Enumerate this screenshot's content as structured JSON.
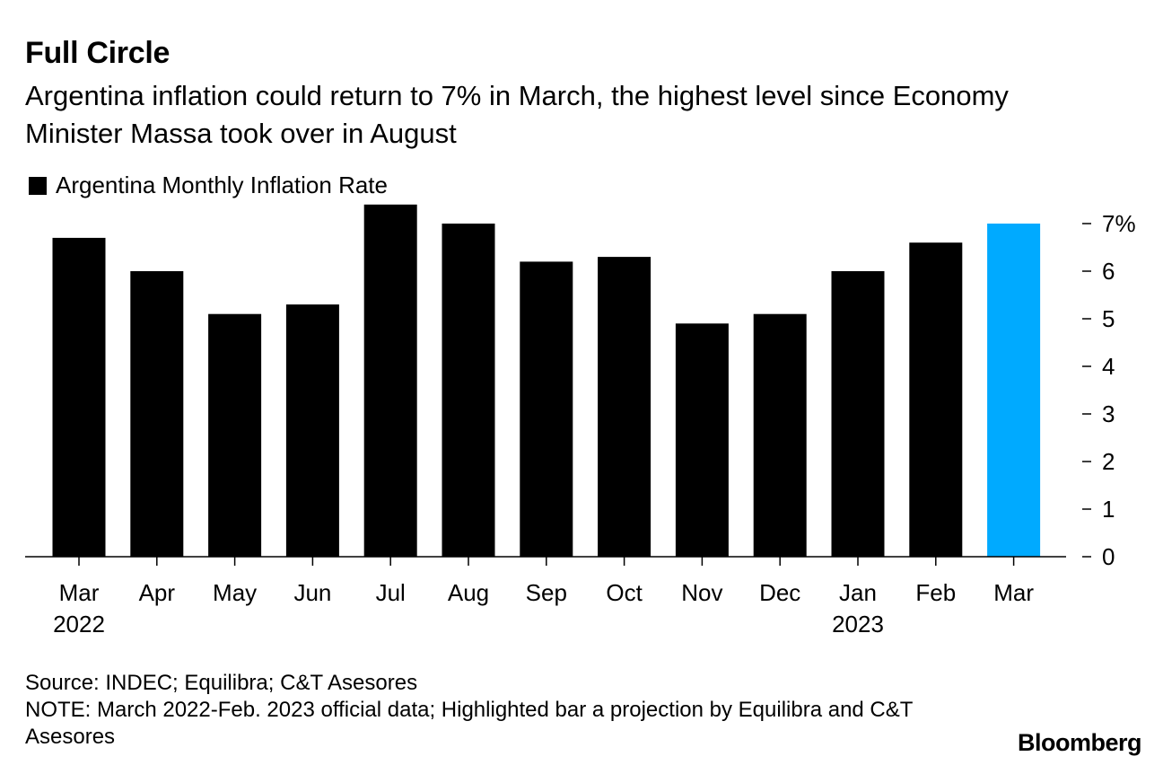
{
  "title": "Full Circle",
  "subtitle": "Argentina inflation could return to 7% in March, the highest level since Economy Minister Massa took over in August",
  "legend": {
    "label": "Argentina Monthly Inflation Rate",
    "swatch_color": "#000000"
  },
  "chart_data": {
    "type": "bar",
    "categories": [
      "Mar",
      "Apr",
      "May",
      "Jun",
      "Jul",
      "Aug",
      "Sep",
      "Oct",
      "Nov",
      "Dec",
      "Jan",
      "Feb",
      "Mar"
    ],
    "year_labels": [
      {
        "category_index": 0,
        "label": "2022"
      },
      {
        "category_index": 10,
        "label": "2023"
      }
    ],
    "series": [
      {
        "name": "Argentina Monthly Inflation Rate",
        "values": [
          6.7,
          6.0,
          5.1,
          5.3,
          7.4,
          7.0,
          6.2,
          6.3,
          4.9,
          5.1,
          6.0,
          6.6,
          7.0
        ],
        "color": "#000000",
        "highlight_index": 12,
        "highlight_color": "#00aaff"
      }
    ],
    "yticks": [
      "0",
      "1",
      "2",
      "3",
      "4",
      "5",
      "6",
      "7%"
    ],
    "ylim": [
      0,
      7.5
    ],
    "y_axis_position": "right",
    "grid": false
  },
  "footer": {
    "source": "Source: INDEC; Equilibra; C&T Asesores",
    "note": "NOTE: March 2022-Feb. 2023 official data; Highlighted bar a projection by Equilibra and C&T Asesores"
  },
  "brand": "Bloomberg"
}
